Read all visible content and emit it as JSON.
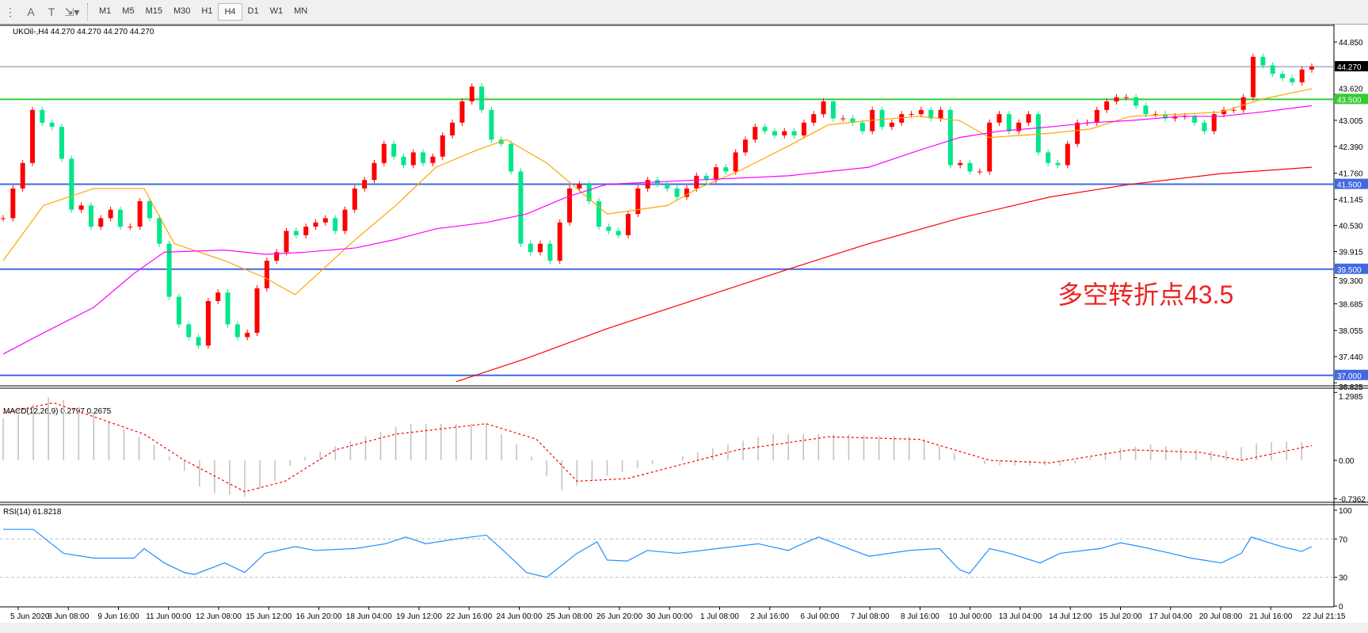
{
  "toolbar": {
    "icons": [
      "fib-icon",
      "text-icon",
      "text-label-icon",
      "arrows-icon"
    ],
    "timeframes": [
      "M1",
      "M5",
      "M15",
      "M30",
      "H1",
      "H4",
      "D1",
      "W1",
      "MN"
    ],
    "active": "H4"
  },
  "main": {
    "label": "UKOil-,H4  44.270 44.270 44.270 44.270",
    "annotation": "多空转折点43.5"
  },
  "macd": {
    "label": "MACD(12,26,9) 0.2797 0.2675"
  },
  "rsi": {
    "label": "RSI(14) 61.8218"
  },
  "chart_data": {
    "type": "candlestick",
    "symbol": "UKOil-",
    "timeframe": "H4",
    "price_axis": {
      "range": [
        36.825,
        44.85
      ],
      "ticks": [
        "44.850",
        "43.620",
        "43.005",
        "42.390",
        "41.760",
        "41.145",
        "40.530",
        "39.915",
        "39.300",
        "38.685",
        "38.055",
        "37.440",
        "36.825"
      ]
    },
    "hlines": [
      {
        "price": 44.27,
        "label": "44.270",
        "color": "#778899",
        "label_bg": "#000000"
      },
      {
        "price": 43.5,
        "label": "43.500",
        "color": "#32cd32",
        "label_bg": "#32cd32"
      },
      {
        "price": 41.5,
        "label": "41.500",
        "color": "#4169e1",
        "label_bg": "#4169e1"
      },
      {
        "price": 39.5,
        "label": "39.500",
        "color": "#4169e1",
        "label_bg": "#4169e1"
      },
      {
        "price": 37.0,
        "label": "37.000",
        "color": "#4169e1",
        "label_bg": "#4169e1"
      }
    ],
    "colors": {
      "up": "#ff0000",
      "down": "#00e68a",
      "ma_fast": "#ffa500",
      "ma_mid": "#ff00ff",
      "ma_slow": "#ff0000",
      "macd_hist": "#c0c0c0",
      "macd_signal": "#ff0000",
      "rsi": "#1e90ff"
    },
    "closes": [
      40.7,
      41.4,
      42.0,
      43.25,
      42.95,
      42.85,
      42.1,
      40.9,
      41.0,
      40.5,
      40.7,
      40.9,
      40.5,
      40.5,
      41.1,
      40.7,
      40.1,
      38.85,
      38.2,
      37.9,
      37.7,
      38.75,
      38.95,
      38.2,
      37.9,
      38.0,
      39.05,
      39.7,
      39.9,
      40.4,
      40.3,
      40.5,
      40.6,
      40.7,
      40.4,
      40.9,
      41.4,
      41.6,
      42.0,
      42.45,
      42.15,
      41.95,
      42.25,
      42.0,
      42.15,
      42.65,
      42.95,
      43.45,
      43.8,
      43.25,
      42.55,
      42.45,
      41.8,
      40.1,
      39.9,
      40.1,
      39.7,
      40.6,
      41.4,
      41.5,
      41.1,
      40.5,
      40.4,
      40.3,
      40.8,
      41.4,
      41.6,
      41.5,
      41.4,
      41.2,
      41.4,
      41.7,
      41.6,
      41.9,
      41.8,
      42.25,
      42.55,
      42.85,
      42.75,
      42.65,
      42.75,
      42.65,
      42.95,
      43.15,
      43.45,
      43.05,
      43.05,
      42.95,
      42.75,
      43.25,
      42.85,
      42.95,
      43.15,
      43.15,
      43.25,
      43.05,
      43.25,
      41.95,
      42.0,
      41.8,
      41.8,
      42.95,
      43.15,
      42.75,
      42.95,
      43.15,
      42.25,
      42.0,
      41.95,
      42.45,
      42.95,
      42.95,
      43.25,
      43.45,
      43.55,
      43.55,
      43.35,
      43.15,
      43.15,
      43.05,
      43.1,
      43.1,
      42.95,
      42.75,
      43.15,
      43.25,
      43.25,
      43.55,
      44.5,
      44.3,
      44.1,
      44.0,
      43.9,
      44.2,
      44.27
    ],
    "ma_fast": [
      [
        0,
        39.7
      ],
      [
        4,
        41.0
      ],
      [
        9,
        41.4
      ],
      [
        14,
        41.4
      ],
      [
        17,
        40.1
      ],
      [
        22,
        39.7
      ],
      [
        26,
        39.3
      ],
      [
        29,
        38.9
      ],
      [
        35,
        40.2
      ],
      [
        39,
        41.0
      ],
      [
        43,
        41.9
      ],
      [
        47,
        42.3
      ],
      [
        50,
        42.55
      ],
      [
        54,
        42.0
      ],
      [
        57,
        41.4
      ],
      [
        60,
        40.8
      ],
      [
        66,
        41.0
      ],
      [
        69,
        41.4
      ],
      [
        73,
        41.8
      ],
      [
        78,
        42.4
      ],
      [
        82,
        42.9
      ],
      [
        86,
        43.0
      ],
      [
        91,
        43.1
      ],
      [
        95,
        43.0
      ],
      [
        98,
        42.6
      ],
      [
        104,
        42.7
      ],
      [
        108,
        42.8
      ],
      [
        112,
        43.1
      ],
      [
        117,
        43.15
      ],
      [
        121,
        43.2
      ],
      [
        125,
        43.5
      ],
      [
        130,
        43.75
      ]
    ],
    "ma_mid": [
      [
        0,
        37.5
      ],
      [
        4,
        38.0
      ],
      [
        9,
        38.6
      ],
      [
        13,
        39.4
      ],
      [
        16,
        39.9
      ],
      [
        22,
        39.95
      ],
      [
        26,
        39.85
      ],
      [
        30,
        39.9
      ],
      [
        35,
        40.0
      ],
      [
        39,
        40.2
      ],
      [
        43,
        40.45
      ],
      [
        48,
        40.6
      ],
      [
        52,
        40.8
      ],
      [
        56,
        41.2
      ],
      [
        60,
        41.5
      ],
      [
        69,
        41.6
      ],
      [
        78,
        41.7
      ],
      [
        82,
        41.8
      ],
      [
        86,
        41.9
      ],
      [
        91,
        42.3
      ],
      [
        95,
        42.6
      ],
      [
        99,
        42.75
      ],
      [
        104,
        42.85
      ],
      [
        108,
        42.95
      ],
      [
        112,
        43.0
      ],
      [
        117,
        43.1
      ],
      [
        121,
        43.1
      ],
      [
        125,
        43.2
      ],
      [
        130,
        43.35
      ]
    ],
    "ma_slow": [
      [
        45,
        36.85
      ],
      [
        52,
        37.4
      ],
      [
        60,
        38.1
      ],
      [
        69,
        38.8
      ],
      [
        78,
        39.5
      ],
      [
        86,
        40.1
      ],
      [
        95,
        40.7
      ],
      [
        104,
        41.2
      ],
      [
        112,
        41.5
      ],
      [
        121,
        41.75
      ],
      [
        130,
        41.9
      ]
    ],
    "macd_axis": {
      "range": [
        -0.7362,
        1.2985
      ],
      "ticks": [
        "1.2985",
        "0.00",
        "-0.7362"
      ]
    },
    "macd_hist": [
      [
        0,
        0.8
      ],
      [
        5,
        1.25
      ],
      [
        10,
        0.8
      ],
      [
        15,
        0.3
      ],
      [
        17,
        0.0
      ],
      [
        20,
        -0.6
      ],
      [
        24,
        -0.7
      ],
      [
        27,
        -0.4
      ],
      [
        29,
        0
      ],
      [
        35,
        0.4
      ],
      [
        40,
        0.7
      ],
      [
        48,
        0.7
      ],
      [
        51,
        0.3
      ],
      [
        53,
        0
      ],
      [
        55,
        -0.6
      ],
      [
        60,
        -0.3
      ],
      [
        66,
        0
      ],
      [
        72,
        0.3
      ],
      [
        76,
        0.5
      ],
      [
        83,
        0.5
      ],
      [
        91,
        0.45
      ],
      [
        96,
        0
      ],
      [
        98,
        -0.1
      ],
      [
        106,
        -0.1
      ],
      [
        110,
        0.2
      ],
      [
        114,
        0.3
      ],
      [
        121,
        0.15
      ],
      [
        125,
        0.35
      ],
      [
        130,
        0.35
      ]
    ],
    "macd_signal": [
      [
        0,
        0.9
      ],
      [
        5,
        1.1
      ],
      [
        14,
        0.5
      ],
      [
        18,
        0
      ],
      [
        24,
        -0.6
      ],
      [
        28,
        -0.4
      ],
      [
        33,
        0.2
      ],
      [
        39,
        0.5
      ],
      [
        48,
        0.7
      ],
      [
        53,
        0.4
      ],
      [
        57,
        -0.4
      ],
      [
        62,
        -0.35
      ],
      [
        67,
        -0.1
      ],
      [
        73,
        0.2
      ],
      [
        82,
        0.45
      ],
      [
        91,
        0.4
      ],
      [
        98,
        0.0
      ],
      [
        104,
        -0.05
      ],
      [
        112,
        0.2
      ],
      [
        119,
        0.15
      ],
      [
        123,
        0.0
      ],
      [
        130,
        0.28
      ]
    ],
    "rsi_axis": {
      "range": [
        0,
        100
      ],
      "ticks": [
        "100",
        "70",
        "30",
        "0"
      ],
      "levels": [
        70,
        30
      ]
    },
    "rsi": [
      [
        0,
        80
      ],
      [
        3,
        80
      ],
      [
        6,
        55
      ],
      [
        9,
        50
      ],
      [
        13,
        50
      ],
      [
        14,
        60
      ],
      [
        16,
        45
      ],
      [
        18,
        35
      ],
      [
        19,
        33
      ],
      [
        22,
        45
      ],
      [
        24,
        35
      ],
      [
        26,
        55
      ],
      [
        29,
        62
      ],
      [
        31,
        58
      ],
      [
        35,
        60
      ],
      [
        38,
        65
      ],
      [
        40,
        72
      ],
      [
        42,
        65
      ],
      [
        45,
        70
      ],
      [
        48,
        74
      ],
      [
        50,
        55
      ],
      [
        52,
        35
      ],
      [
        54,
        30
      ],
      [
        57,
        55
      ],
      [
        59,
        67
      ],
      [
        60,
        48
      ],
      [
        62,
        47
      ],
      [
        64,
        58
      ],
      [
        67,
        55
      ],
      [
        71,
        60
      ],
      [
        75,
        65
      ],
      [
        78,
        58
      ],
      [
        79,
        63
      ],
      [
        81,
        72
      ],
      [
        84,
        60
      ],
      [
        86,
        52
      ],
      [
        90,
        58
      ],
      [
        93,
        60
      ],
      [
        95,
        38
      ],
      [
        96,
        34
      ],
      [
        98,
        60
      ],
      [
        100,
        55
      ],
      [
        103,
        45
      ],
      [
        105,
        55
      ],
      [
        109,
        60
      ],
      [
        111,
        66
      ],
      [
        113,
        62
      ],
      [
        116,
        55
      ],
      [
        118,
        50
      ],
      [
        121,
        45
      ],
      [
        123,
        55
      ],
      [
        124,
        72
      ],
      [
        127,
        62
      ],
      [
        129,
        57
      ],
      [
        130,
        62
      ]
    ],
    "time_labels": [
      "5 Jun 2020",
      "8 Jun 08:00",
      "9 Jun 16:00",
      "11 Jun 00:00",
      "12 Jun 08:00",
      "15 Jun 12:00",
      "16 Jun 20:00",
      "18 Jun 04:00",
      "19 Jun 12:00",
      "22 Jun 16:00",
      "24 Jun 00:00",
      "25 Jun 08:00",
      "26 Jun 20:00",
      "30 Jun 00:00",
      "1 Jul 08:00",
      "2 Jul 16:00",
      "6 Jul 00:00",
      "7 Jul 08:00",
      "8 Jul 16:00",
      "10 Jul 00:00",
      "13 Jul 04:00",
      "14 Jul 12:00",
      "15 Jul 20:00",
      "17 Jul 04:00",
      "20 Jul 08:00",
      "21 Jul 16:00"
    ],
    "cursor_time_label": "22 Jul 21:15"
  }
}
